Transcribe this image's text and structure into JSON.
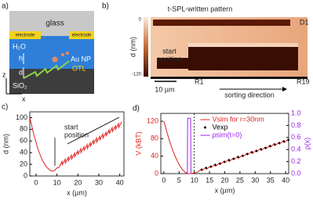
{
  "panel_a": {
    "label": "a)",
    "glass": "glass",
    "electrode_left": "electrode",
    "electrode_right": "electrode",
    "water": "H₂O",
    "h": "h",
    "d": "d",
    "particle": "Au NP",
    "otl": "OTL",
    "oxide": "SiO₂",
    "axis_z": "z",
    "axis_x": "x"
  },
  "panel_b": {
    "label": "b)",
    "title": "t-SPL-written pattern",
    "ylabel": "d (nm)",
    "colorbar_ticks": [
      0,
      -120
    ],
    "d1": "D1",
    "start_position": [
      "start",
      "position"
    ],
    "r1": "R1",
    "r19": "R19",
    "scale": "10 µm",
    "direction": "sorting direction"
  },
  "chart_data": [
    {
      "type": "line",
      "panel_label": "c)",
      "xlabel": "x (µm)",
      "ylabel": "d (nm)",
      "annotation": [
        "start",
        "position"
      ],
      "x": [
        -3,
        -1,
        1,
        3,
        5,
        7,
        8,
        9,
        10,
        11,
        12.4,
        12.5,
        13.9,
        14,
        15.4,
        15.5,
        16.9,
        17,
        18.4,
        18.5,
        19.9,
        20,
        21.4,
        21.5,
        22.9,
        23,
        24.4,
        24.5,
        25.9,
        26,
        27.4,
        27.5,
        28.9,
        29,
        30.4,
        30.5,
        31.9,
        32,
        33.4,
        33.5,
        34.9,
        35,
        36.4,
        36.5,
        37.9,
        38,
        39.4,
        39.5,
        40.9
      ],
      "values": [
        100,
        70,
        45,
        27,
        15,
        9,
        8,
        10,
        14,
        15,
        25,
        19,
        29,
        22,
        32,
        26,
        36,
        29,
        39,
        33,
        43,
        37,
        47,
        40,
        50,
        44,
        54,
        47,
        57,
        51,
        61,
        55,
        65,
        58,
        68,
        62,
        72,
        65,
        75,
        69,
        79,
        73,
        83,
        76,
        86,
        80,
        90,
        83,
        93
      ],
      "color": "#e0201f",
      "xlim": [
        -3,
        42
      ],
      "ylim": [
        0,
        110
      ],
      "xticks": [
        0,
        10,
        20,
        30,
        40
      ],
      "yticks": [
        0,
        20,
        40,
        60,
        80,
        100
      ]
    },
    {
      "type": "line",
      "panel_label": "d)",
      "xlabel": "x (µm)",
      "ylabel": "V (kBT)",
      "y2label": "ρ(x)",
      "xlim": [
        -1,
        41
      ],
      "ylim": [
        0,
        138
      ],
      "y2lim": [
        0,
        1
      ],
      "xticks": [
        0,
        5,
        10,
        15,
        20,
        25,
        30,
        35,
        40
      ],
      "yticks": [
        0,
        40,
        80,
        120
      ],
      "y2ticks": [
        {
          "value": 0,
          "label": "0.0"
        },
        0.2,
        0.4,
        0.6,
        0.8,
        {
          "value": 1,
          "label": "1.0"
        }
      ],
      "vline": 10,
      "series": [
        {
          "name": "Vsim for r=30nm",
          "color": "#e0201f",
          "x": [
            0,
            1,
            2,
            3,
            4,
            5,
            6,
            7,
            8,
            9,
            10,
            11,
            12.4,
            12.5,
            13.9,
            14,
            15.4,
            15.5,
            16.9,
            17,
            18.4,
            18.5,
            19.9,
            20,
            21.4,
            21.5,
            22.9,
            23,
            24.4,
            24.5,
            25.9,
            26,
            27.4,
            27.5,
            28.9,
            29,
            30.4,
            30.5,
            31.9,
            32,
            33.4,
            33.5,
            34.9,
            35,
            36.4,
            36.5,
            37.9,
            38,
            39.4,
            39.5,
            40.9
          ],
          "values": [
            120,
            95,
            72,
            52,
            35,
            21,
            10,
            3,
            0,
            0,
            2,
            3,
            11,
            7,
            15,
            10,
            18,
            14,
            22,
            17,
            25,
            21,
            29,
            25,
            33,
            28,
            36,
            32,
            40,
            35,
            43,
            39,
            47,
            43,
            51,
            46,
            54,
            50,
            58,
            53,
            61,
            57,
            65,
            61,
            69,
            64,
            72,
            68,
            76,
            71,
            79
          ]
        },
        {
          "name": "Vexp",
          "color": "#000000",
          "marker": "dot",
          "x": [
            12.4,
            13.9,
            15.4,
            16.9,
            18.4,
            19.9,
            21.4,
            22.9,
            24.4,
            25.9,
            27.4,
            28.9,
            30.4,
            31.9,
            33.4,
            34.9,
            36.4,
            37.9,
            39.4,
            40.9
          ],
          "values": [
            9,
            13,
            16,
            20,
            23,
            27,
            31,
            34,
            38,
            41,
            45,
            49,
            52,
            56,
            59,
            63,
            67,
            70,
            74,
            77
          ]
        },
        {
          "name": "ρsim(t=0)",
          "color": "#a020f0",
          "axis": "y2",
          "x": [
            7.5,
            7.7,
            7.8,
            8.8,
            8.9,
            9.1
          ],
          "values": [
            0,
            0,
            0.92,
            0.92,
            0,
            0
          ]
        }
      ]
    }
  ]
}
